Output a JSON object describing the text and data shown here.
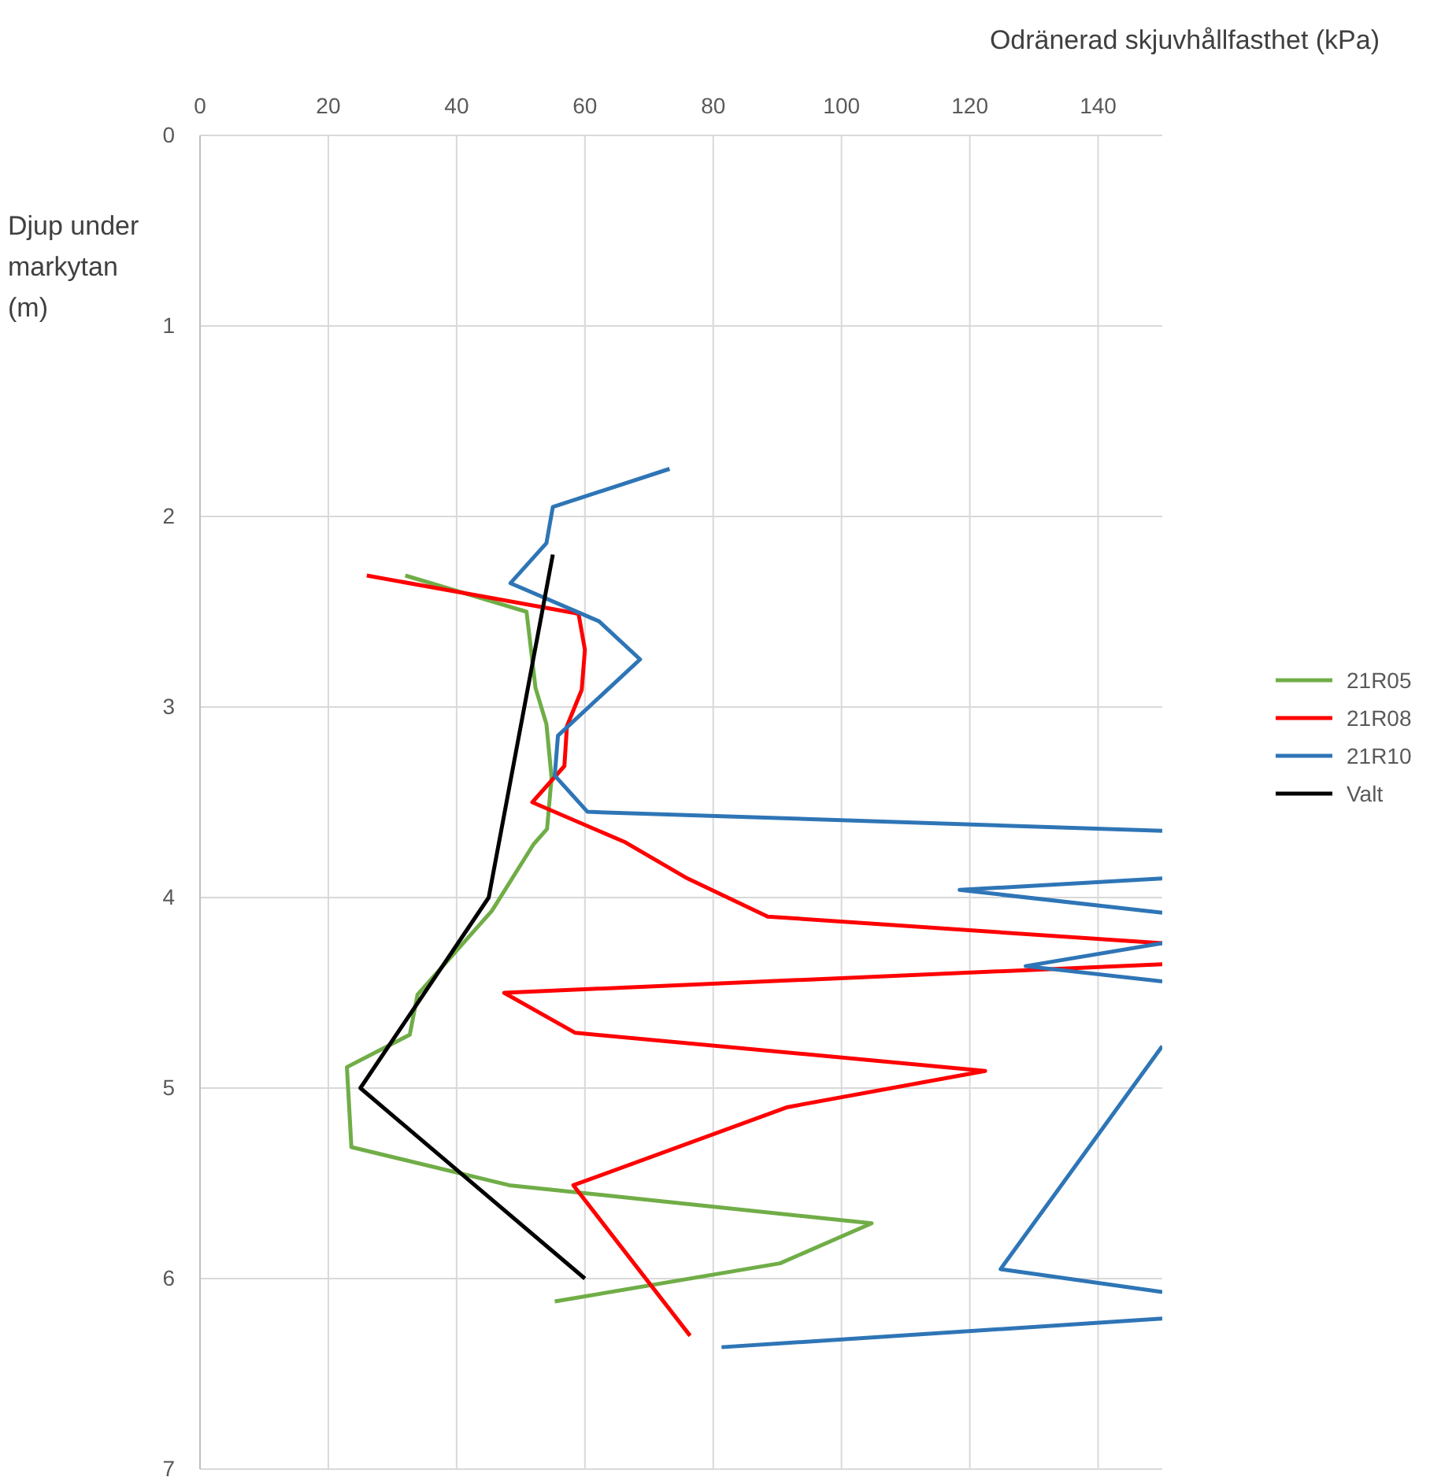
{
  "chart_data": {
    "type": "line",
    "xlabel": "Odränerad skjuvhållfasthet (kPa)",
    "ylabel": "Djup under markytan (m)",
    "xlim": [
      0,
      150
    ],
    "xticks": [
      0,
      20,
      40,
      60,
      80,
      100,
      120,
      140
    ],
    "ylim": [
      7,
      0
    ],
    "yticks": [
      0,
      1,
      2,
      3,
      4,
      5,
      6,
      7
    ],
    "grid": true,
    "legend": "right",
    "marker": "none",
    "line_style": "solid",
    "series": [
      {
        "name": "21R05",
        "color": "#70ad47",
        "x": [
          32,
          50.9,
          52.3,
          54,
          54.8,
          54.1,
          52,
          45.5,
          33.9,
          32.7,
          22.9,
          23.6,
          48.2,
          104.7,
          90.4,
          55.3
        ],
        "values": [
          2.31,
          2.5,
          2.9,
          3.09,
          3.37,
          3.64,
          3.72,
          4.07,
          4.51,
          4.72,
          4.89,
          5.31,
          5.51,
          5.71,
          5.92,
          6.12
        ]
      },
      {
        "name": "21R08",
        "color": "#ff0000",
        "x": [
          26,
          59,
          60,
          59.5,
          57.2,
          56.8,
          51.8,
          66.3,
          76,
          88.5,
          150,
          null,
          150,
          47.4,
          58.5,
          122.4,
          91.6,
          58.2,
          76.4
        ],
        "values": [
          2.31,
          2.51,
          2.7,
          2.91,
          3.1,
          3.31,
          3.5,
          3.71,
          3.9,
          4.1,
          4.24,
          null,
          4.35,
          4.5,
          4.71,
          4.91,
          5.1,
          5.51,
          6.3
        ]
      },
      {
        "name": "21R10",
        "color": "#2e75b6",
        "x": [
          73.2,
          55,
          54,
          48.4,
          62.2,
          68.6,
          55.8,
          55.3,
          60.4,
          150,
          null,
          150,
          118.4,
          150,
          null,
          150,
          128.7,
          150,
          null,
          150,
          124.8,
          150,
          null,
          150,
          81.3
        ],
        "values": [
          1.75,
          1.95,
          2.14,
          2.35,
          2.55,
          2.75,
          3.15,
          3.36,
          3.55,
          3.65,
          null,
          3.9,
          3.96,
          4.08,
          null,
          4.24,
          4.36,
          4.44,
          null,
          4.78,
          5.95,
          6.07,
          null,
          6.21,
          6.36
        ]
      },
      {
        "name": "Valt",
        "color": "#000000",
        "x": [
          55,
          45,
          25,
          60
        ],
        "values": [
          2.2,
          4,
          5,
          6
        ]
      }
    ]
  }
}
